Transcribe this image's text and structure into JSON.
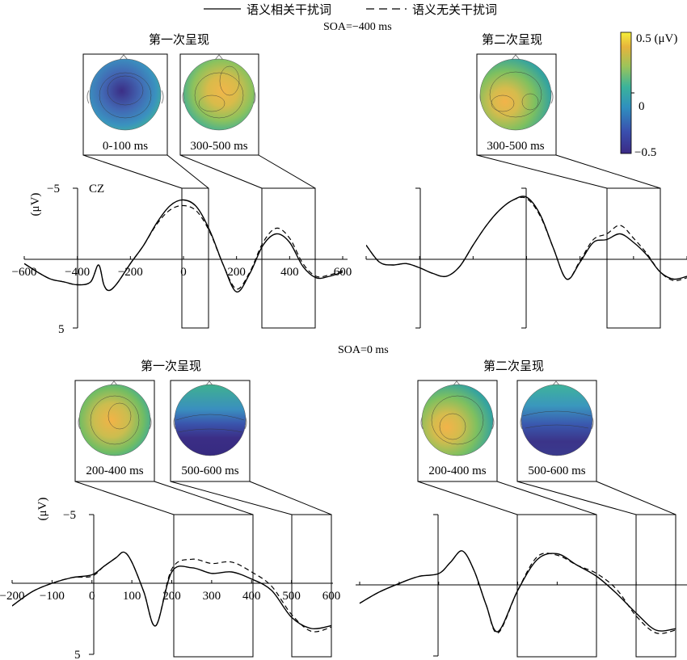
{
  "legend": {
    "related": "语义相关干扰词",
    "unrelated": "语义无关干扰词"
  },
  "colorbar": {
    "max_label": "0.5 (μV)",
    "mid_label": "0",
    "min_label": "−0.5",
    "colors": [
      "#3b2a85",
      "#3a4fae",
      "#2f8fbf",
      "#3bb39a",
      "#9cc45a",
      "#e6b43c",
      "#f5ef3a"
    ]
  },
  "top": {
    "soa_label": "SOA=−400 ms",
    "left_title": "第一次呈现",
    "right_title": "第二次呈现",
    "electrode": "CZ",
    "ylabel": "(μV)",
    "ytick_top": "−5",
    "ytick_bottom": "5",
    "xticks": [
      "−600",
      "−400",
      "−200",
      "0",
      "200",
      "400",
      "600"
    ],
    "maps_left": [
      "0-100 ms",
      "300-500 ms"
    ],
    "maps_right": [
      "300-500 ms"
    ]
  },
  "bottom": {
    "soa_label": "SOA=0 ms",
    "left_title": "第一次呈现",
    "right_title": "第二次呈现",
    "ylabel": "(μV)",
    "ytick_top": "−5",
    "ytick_bottom": "5",
    "xticks": [
      "−200",
      "−100",
      "0",
      "100",
      "200",
      "300",
      "400",
      "500",
      "600"
    ],
    "maps_left": [
      "200-400 ms",
      "500-600 ms"
    ],
    "maps_right": [
      "200-400 ms",
      "500-600 ms"
    ]
  },
  "chart_data": [
    {
      "type": "line",
      "panel": "SOA=−400 ms 第一次呈现",
      "xlim": [
        -600,
        600
      ],
      "ylim": [
        5,
        -5
      ],
      "series": [
        {
          "name": "语义相关干扰词",
          "x": [
            -600,
            -550,
            -500,
            -450,
            -400,
            -350,
            -320,
            -300,
            -280,
            -250,
            -200,
            -150,
            -100,
            -50,
            0,
            50,
            100,
            150,
            200,
            250,
            300,
            350,
            400,
            450,
            500,
            550,
            600
          ],
          "y": [
            0.3,
            0.9,
            1.4,
            1.6,
            1.8,
            1.6,
            0.4,
            1.8,
            2.2,
            1.7,
            0.3,
            -1.0,
            -2.6,
            -3.8,
            -4.2,
            -3.7,
            -2.0,
            0.4,
            2.3,
            1.0,
            -1.0,
            -1.8,
            -1.2,
            0.5,
            1.3,
            1.2,
            0.9
          ]
        },
        {
          "name": "语义无关干扰词",
          "x": [
            -600,
            -550,
            -500,
            -450,
            -400,
            -350,
            -320,
            -300,
            -280,
            -250,
            -200,
            -150,
            -100,
            -50,
            0,
            50,
            100,
            150,
            200,
            250,
            300,
            350,
            400,
            450,
            500,
            550,
            600
          ],
          "y": [
            0.3,
            0.9,
            1.4,
            1.6,
            1.8,
            1.6,
            0.4,
            1.8,
            2.2,
            1.7,
            0.3,
            -1.0,
            -2.5,
            -3.5,
            -3.8,
            -3.4,
            -1.9,
            0.4,
            2.1,
            0.9,
            -1.2,
            -2.2,
            -1.5,
            0.3,
            1.2,
            1.1,
            0.8
          ]
        }
      ]
    },
    {
      "type": "line",
      "panel": "SOA=−400 ms 第二次呈现",
      "xlim": [
        -600,
        600
      ],
      "ylim": [
        5,
        -5
      ],
      "series": [
        {
          "name": "语义相关干扰词",
          "x": [
            -600,
            -550,
            -500,
            -450,
            -400,
            -350,
            -300,
            -250,
            -200,
            -150,
            -100,
            -50,
            0,
            50,
            100,
            150,
            200,
            250,
            300,
            350,
            400,
            450,
            500,
            550,
            600
          ],
          "y": [
            -1.0,
            0.2,
            0.4,
            0.3,
            0.6,
            1.0,
            1.2,
            0.5,
            -1.0,
            -2.4,
            -3.5,
            -4.2,
            -4.4,
            -3.2,
            -0.8,
            1.4,
            0.2,
            -1.2,
            -1.4,
            -1.8,
            -1.2,
            -0.3,
            0.9,
            1.4,
            1.2
          ]
        },
        {
          "name": "语义无关干扰词",
          "x": [
            -600,
            -550,
            -500,
            -450,
            -400,
            -350,
            -300,
            -250,
            -200,
            -150,
            -100,
            -50,
            0,
            50,
            100,
            150,
            200,
            250,
            300,
            350,
            400,
            450,
            500,
            550,
            600
          ],
          "y": [
            -1.0,
            0.2,
            0.4,
            0.3,
            0.6,
            1.0,
            1.2,
            0.5,
            -1.0,
            -2.4,
            -3.5,
            -4.2,
            -4.3,
            -3.1,
            -0.8,
            1.4,
            0.1,
            -1.4,
            -1.8,
            -2.4,
            -1.5,
            -0.4,
            0.9,
            1.5,
            1.3
          ]
        }
      ]
    },
    {
      "type": "line",
      "panel": "SOA=0 ms 第一次呈现",
      "xlim": [
        -200,
        600
      ],
      "ylim": [
        5,
        -5
      ],
      "series": [
        {
          "name": "语义相关干扰词",
          "x": [
            -200,
            -150,
            -100,
            -50,
            0,
            30,
            60,
            80,
            100,
            130,
            160,
            200,
            250,
            300,
            350,
            400,
            450,
            500,
            550,
            600
          ],
          "y": [
            1.6,
            0.6,
            0,
            -0.4,
            -0.6,
            -1.2,
            -1.8,
            -2.2,
            -1.5,
            0.6,
            3.0,
            -0.8,
            -1.1,
            -0.7,
            -0.8,
            -0.3,
            0.5,
            2.4,
            3.2,
            3.0
          ]
        },
        {
          "name": "语义无关干扰词",
          "x": [
            -200,
            -150,
            -100,
            -50,
            0,
            30,
            60,
            80,
            100,
            130,
            160,
            200,
            250,
            300,
            350,
            400,
            450,
            500,
            550,
            600
          ],
          "y": [
            1.6,
            0.6,
            0,
            -0.4,
            -0.5,
            -1.2,
            -1.8,
            -2.2,
            -1.5,
            0.6,
            3.0,
            -1.0,
            -1.7,
            -1.4,
            -1.5,
            -0.8,
            0.2,
            2.2,
            3.4,
            3.1
          ]
        }
      ]
    },
    {
      "type": "line",
      "panel": "SOA=0 ms 第二次呈现",
      "xlim": [
        -200,
        600
      ],
      "ylim": [
        5,
        -5
      ],
      "series": [
        {
          "name": "语义相关干扰词",
          "x": [
            -200,
            -150,
            -100,
            -50,
            0,
            30,
            60,
            90,
            120,
            150,
            200,
            250,
            300,
            350,
            400,
            450,
            500,
            550,
            600
          ],
          "y": [
            1.3,
            0.5,
            -0.1,
            -0.6,
            -0.8,
            -1.6,
            -2.4,
            -1.0,
            1.4,
            3.3,
            0.4,
            -1.8,
            -2.2,
            -1.4,
            -0.6,
            0.6,
            2.0,
            3.2,
            3.1
          ]
        },
        {
          "name": "语义无关干扰词",
          "x": [
            -200,
            -150,
            -100,
            -50,
            0,
            30,
            60,
            90,
            120,
            150,
            200,
            250,
            300,
            350,
            400,
            450,
            500,
            550,
            600
          ],
          "y": [
            1.3,
            0.5,
            -0.1,
            -0.6,
            -0.8,
            -1.6,
            -2.4,
            -1.0,
            1.4,
            3.4,
            0.4,
            -2.0,
            -2.1,
            -1.4,
            -0.8,
            0.3,
            2.2,
            3.4,
            3.2
          ]
        }
      ]
    }
  ]
}
